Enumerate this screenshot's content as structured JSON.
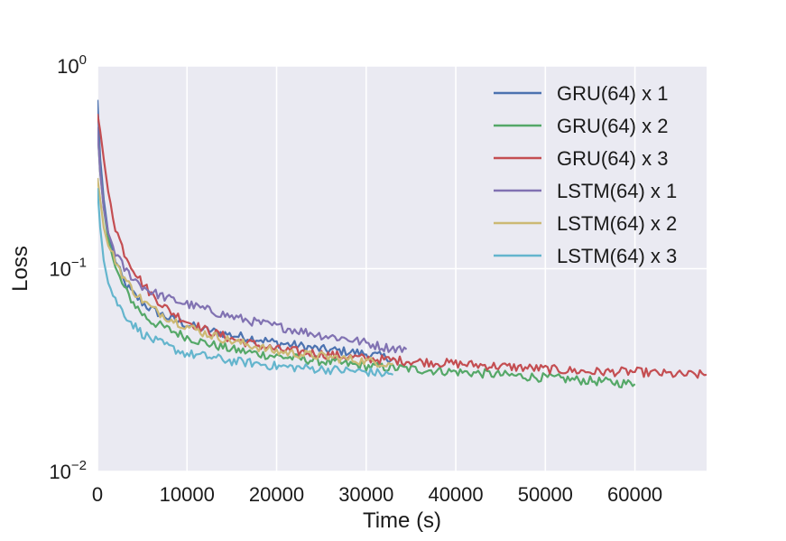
{
  "chart_data": {
    "type": "line",
    "title": "",
    "xlabel": "Time (s)",
    "ylabel": "Loss",
    "yscale": "log",
    "xlim": [
      0,
      68000
    ],
    "ylim": [
      0.01,
      1
    ],
    "xticks": [
      0,
      10000,
      20000,
      30000,
      40000,
      50000,
      60000
    ],
    "xtick_labels": [
      "0",
      "10000",
      "20000",
      "30000",
      "40000",
      "50000",
      "60000"
    ],
    "yticks": [
      {
        "value": 1,
        "base": "10",
        "exp": "0"
      },
      {
        "value": 0.1,
        "base": "10",
        "exp": "−1"
      },
      {
        "value": 0.01,
        "base": "10",
        "exp": "−2"
      }
    ],
    "grid": true,
    "legend_position": "top-right",
    "series": [
      {
        "name": "GRU(64) x 1",
        "color": "#4c72b0",
        "x": [
          0,
          300,
          700,
          1200,
          2000,
          3000,
          4000,
          5000,
          6000,
          8000,
          10000,
          12000,
          15000,
          18000,
          20000,
          22000,
          25000,
          28000,
          30000,
          33000
        ],
        "y": [
          0.68,
          0.35,
          0.22,
          0.15,
          0.11,
          0.085,
          0.075,
          0.068,
          0.063,
          0.057,
          0.053,
          0.05,
          0.047,
          0.045,
          0.043,
          0.042,
          0.04,
          0.039,
          0.038,
          0.036
        ]
      },
      {
        "name": "GRU(64) x 2",
        "color": "#55a868",
        "x": [
          0,
          300,
          700,
          1200,
          2000,
          3000,
          4000,
          5000,
          6000,
          8000,
          10000,
          12000,
          15000,
          18000,
          20000,
          25000,
          30000,
          35000,
          40000,
          45000,
          50000,
          55000,
          60000
        ],
        "y": [
          0.5,
          0.3,
          0.2,
          0.14,
          0.1,
          0.08,
          0.068,
          0.06,
          0.055,
          0.05,
          0.046,
          0.043,
          0.04,
          0.038,
          0.037,
          0.035,
          0.033,
          0.032,
          0.031,
          0.03,
          0.029,
          0.028,
          0.027
        ]
      },
      {
        "name": "GRU(64) x 3",
        "color": "#c44e52",
        "x": [
          0,
          300,
          700,
          1200,
          2000,
          3000,
          4000,
          5000,
          6000,
          8000,
          10000,
          12000,
          15000,
          20000,
          25000,
          30000,
          35000,
          40000,
          45000,
          50000,
          55000,
          60000,
          65000,
          68000
        ],
        "y": [
          0.58,
          0.48,
          0.35,
          0.24,
          0.16,
          0.12,
          0.1,
          0.085,
          0.075,
          0.062,
          0.055,
          0.05,
          0.045,
          0.04,
          0.038,
          0.036,
          0.035,
          0.034,
          0.033,
          0.032,
          0.031,
          0.031,
          0.03,
          0.03
        ]
      },
      {
        "name": "LSTM(64) x 1",
        "color": "#8172b2",
        "x": [
          0,
          300,
          700,
          1200,
          2000,
          3000,
          4000,
          5000,
          6000,
          8000,
          10000,
          12000,
          15000,
          18000,
          20000,
          22000,
          25000,
          28000,
          30000,
          32000,
          34500
        ],
        "y": [
          0.5,
          0.3,
          0.2,
          0.15,
          0.12,
          0.1,
          0.09,
          0.082,
          0.077,
          0.071,
          0.067,
          0.063,
          0.058,
          0.054,
          0.052,
          0.05,
          0.047,
          0.045,
          0.043,
          0.041,
          0.04
        ]
      },
      {
        "name": "LSTM(64) x 2",
        "color": "#ccb974",
        "x": [
          0,
          300,
          700,
          1200,
          2000,
          3000,
          4000,
          5000,
          6000,
          8000,
          10000,
          12000,
          15000,
          18000,
          20000,
          25000,
          30000,
          33000
        ],
        "y": [
          0.28,
          0.22,
          0.16,
          0.13,
          0.11,
          0.09,
          0.078,
          0.07,
          0.064,
          0.057,
          0.052,
          0.048,
          0.044,
          0.041,
          0.039,
          0.037,
          0.035,
          0.034
        ]
      },
      {
        "name": "LSTM(64) x 3",
        "color": "#64b5cd",
        "x": [
          0,
          300,
          700,
          1200,
          2000,
          3000,
          4000,
          5000,
          6000,
          8000,
          10000,
          12000,
          15000,
          18000,
          20000,
          25000,
          30000,
          33000
        ],
        "y": [
          0.25,
          0.16,
          0.11,
          0.085,
          0.07,
          0.06,
          0.053,
          0.048,
          0.045,
          0.041,
          0.038,
          0.037,
          0.035,
          0.034,
          0.033,
          0.032,
          0.031,
          0.03
        ]
      }
    ]
  }
}
